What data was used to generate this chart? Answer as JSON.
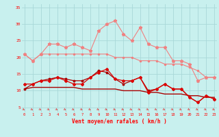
{
  "x": [
    0,
    1,
    2,
    3,
    4,
    5,
    6,
    7,
    8,
    9,
    10,
    11,
    12,
    13,
    14,
    15,
    16,
    17,
    18,
    19,
    20,
    21,
    22,
    23
  ],
  "line_max_rafales": [
    21,
    19,
    21,
    24,
    24,
    23,
    24,
    23,
    22,
    28,
    30,
    31,
    27,
    25,
    29,
    24,
    23,
    23,
    19,
    19,
    18,
    13,
    14,
    14
  ],
  "line_max_moyen": [
    21,
    19,
    21,
    21,
    21,
    21,
    21,
    21,
    21,
    21,
    21,
    20,
    20,
    20,
    19,
    19,
    19,
    18,
    18,
    18,
    17,
    16,
    14,
    14
  ],
  "line_min_moyen": [
    10.5,
    11,
    11,
    11,
    11,
    11,
    11,
    10.5,
    10.5,
    10.5,
    10.5,
    10.5,
    10,
    10,
    10,
    9.5,
    9.5,
    9,
    9,
    9,
    8.5,
    8.5,
    8,
    8
  ],
  "line_instant": [
    12,
    12,
    13,
    13,
    14,
    13,
    12,
    12,
    14,
    15.5,
    16.5,
    13.5,
    13,
    13,
    14,
    9.5,
    10.5,
    12,
    10.5,
    10.5,
    8,
    6.5,
    8.5,
    7.5
  ],
  "line_min_rafales": [
    10.5,
    12,
    13,
    13.5,
    14,
    13.5,
    13,
    13,
    14,
    16,
    15.5,
    13.5,
    12,
    13,
    14,
    10,
    10.5,
    12,
    10.5,
    10.5,
    8,
    6.5,
    8.5,
    7.5
  ],
  "bg_color": "#c8f0ee",
  "grid_color": "#a8d8d8",
  "color_light_pink": "#f08080",
  "color_pink": "#f06060",
  "color_dark_red": "#aa0000",
  "color_red": "#dd0000",
  "arrow_color": "#dd4444",
  "xlabel": "Vent moyen/en rafales ( km/h )",
  "yticks": [
    5,
    10,
    15,
    20,
    25,
    30,
    35
  ],
  "ylim": [
    3.5,
    36
  ],
  "xlim": [
    -0.3,
    23.3
  ]
}
